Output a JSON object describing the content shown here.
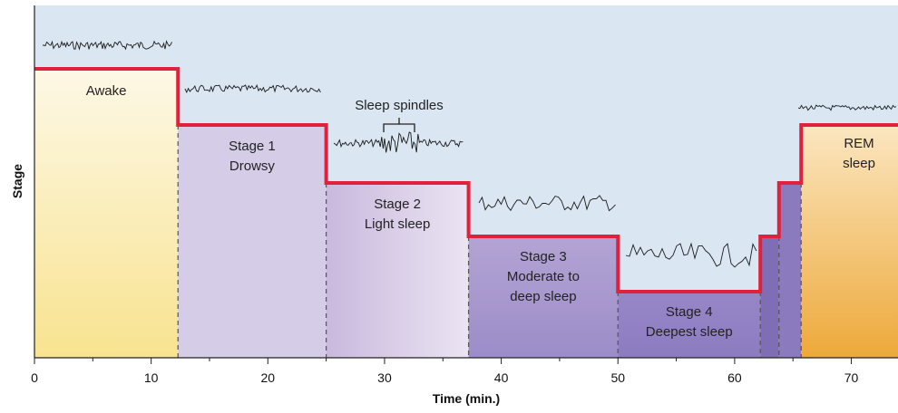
{
  "chart_data": {
    "type": "area",
    "xlabel": "Time (min.)",
    "ylabel": "Stage",
    "xlim": [
      0,
      74
    ],
    "xticks": [
      0,
      10,
      20,
      30,
      40,
      50,
      60,
      70
    ],
    "stages": [
      {
        "name": "awake",
        "level": 5,
        "start": 0,
        "end": 12.3,
        "lines": [
          "Awake"
        ],
        "colors": [
          "#fdf8e6",
          "#f8e38f"
        ]
      },
      {
        "name": "stage-1",
        "level": 4,
        "start": 12.3,
        "end": 25,
        "lines": [
          "Stage 1",
          "Drowsy"
        ],
        "colors": [
          "#d5cde7",
          "#d5cde7"
        ]
      },
      {
        "name": "stage-2",
        "level": 3,
        "start": 25,
        "end": 37.2,
        "lines": [
          "Stage 2",
          "Light sleep"
        ],
        "colors": [
          "#c9b9de",
          "#ebe4f2"
        ]
      },
      {
        "name": "stage-3",
        "level": 2,
        "start": 37.2,
        "end": 50,
        "lines": [
          "Stage 3",
          "Moderate to",
          "deep sleep"
        ],
        "colors": [
          "#b3a4d4",
          "#9c8cc8"
        ]
      },
      {
        "name": "stage-4",
        "level": 1,
        "start": 50,
        "end": 62.2,
        "lines": [
          "Stage 4",
          "Deepest sleep"
        ],
        "colors": [
          "#9787c7",
          "#8d7bc0"
        ]
      },
      {
        "name": "stage-3-return",
        "level": 2,
        "start": 62.2,
        "end": 63.8,
        "lines": [],
        "colors": [
          "#7f6db6",
          "#7f6db6"
        ]
      },
      {
        "name": "stage-2-return",
        "level": 3,
        "start": 63.8,
        "end": 65.7,
        "lines": [],
        "colors": [
          "#8b7bbe",
          "#8b7bbe"
        ]
      },
      {
        "name": "rem",
        "level": 4,
        "start": 65.7,
        "end": 74,
        "lines": [
          "REM",
          "sleep"
        ],
        "colors": [
          "#fbe6c0",
          "#eda93a"
        ]
      }
    ],
    "annotation": "Sleep spindles",
    "colors": {
      "background": "#dbe6f3",
      "step_line": "#e0203c",
      "divider": "#555555"
    }
  }
}
